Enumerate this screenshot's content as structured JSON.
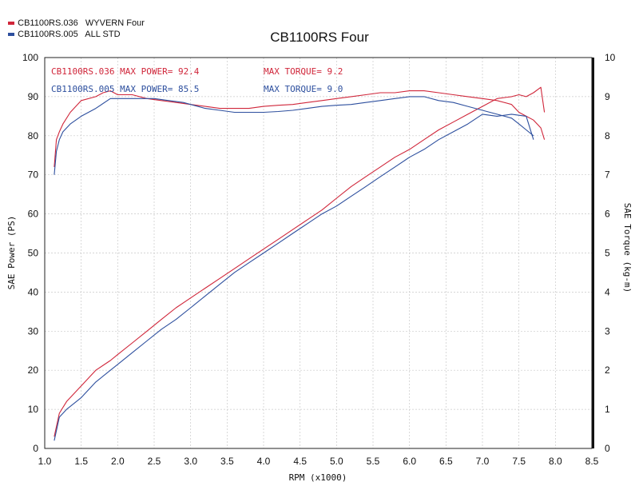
{
  "legend": [
    {
      "label": "CB1100RS.036   WYVERN Four",
      "color": "#d0263a"
    },
    {
      "label": "CB1100RS.005   ALL STD",
      "color": "#2d4f9e"
    }
  ],
  "annotations": {
    "red_power": "CB1100RS.036  MAX POWER= 92.4",
    "red_torque": "MAX TORQUE= 9.2",
    "blue_power": "CB1100RS.005  MAX POWER= 85.5",
    "blue_torque": "MAX TORQUE= 9.0"
  },
  "chart_data": {
    "type": "line",
    "title": "CB1100RS Four",
    "xlabel": "RPM (x1000)",
    "ylabel": "SAE Power (PS)",
    "y2label": "SAE Torque (kg-m)",
    "xlim": [
      1.0,
      8.5
    ],
    "ylim": [
      0,
      100
    ],
    "y2lim": [
      0,
      10
    ],
    "xticks": [
      "1.0",
      "1.5",
      "2.0",
      "2.5",
      "3.0",
      "3.5",
      "4.0",
      "4.5",
      "5.0",
      "5.5",
      "6.0",
      "6.5",
      "7.0",
      "7.5",
      "8.0",
      "8.5"
    ],
    "yticks": [
      "0",
      "10",
      "20",
      "30",
      "40",
      "50",
      "60",
      "70",
      "80",
      "90",
      "100"
    ],
    "y2ticks": [
      "0",
      "1",
      "2",
      "3",
      "4",
      "5",
      "6",
      "7",
      "8",
      "9",
      "10"
    ],
    "grid": true,
    "series": [
      {
        "name": "CB1100RS.036 WYVERN Four",
        "measure": "torque",
        "axis": "right",
        "color": "#d0263a",
        "x": [
          1.13,
          1.16,
          1.2,
          1.25,
          1.35,
          1.5,
          1.7,
          1.8,
          1.9,
          2.0,
          2.2,
          2.4,
          2.6,
          2.8,
          3.0,
          3.2,
          3.4,
          3.6,
          3.8,
          4.0,
          4.2,
          4.4,
          4.6,
          4.8,
          5.0,
          5.2,
          5.4,
          5.6,
          5.8,
          6.0,
          6.2,
          6.4,
          6.6,
          6.8,
          7.0,
          7.2,
          7.4,
          7.5,
          7.6,
          7.7,
          7.75,
          7.8,
          7.85
        ],
        "y": [
          7.2,
          7.9,
          8.1,
          8.3,
          8.6,
          8.9,
          9.0,
          9.1,
          9.15,
          9.05,
          9.05,
          8.95,
          8.9,
          8.85,
          8.8,
          8.75,
          8.7,
          8.7,
          8.7,
          8.75,
          8.78,
          8.8,
          8.85,
          8.9,
          8.95,
          9.0,
          9.05,
          9.1,
          9.1,
          9.15,
          9.15,
          9.1,
          9.05,
          9.0,
          8.95,
          8.9,
          8.8,
          8.6,
          8.5,
          8.4,
          8.3,
          8.2,
          7.9
        ]
      },
      {
        "name": "CB1100RS.036 WYVERN Four",
        "measure": "power",
        "axis": "left",
        "color": "#d0263a",
        "x": [
          1.13,
          1.2,
          1.3,
          1.5,
          1.7,
          1.9,
          2.0,
          2.2,
          2.4,
          2.6,
          2.8,
          3.0,
          3.2,
          3.4,
          3.6,
          3.8,
          4.0,
          4.2,
          4.4,
          4.6,
          4.8,
          5.0,
          5.2,
          5.4,
          5.6,
          5.8,
          6.0,
          6.2,
          6.4,
          6.6,
          6.8,
          7.0,
          7.2,
          7.4,
          7.5,
          7.6,
          7.7,
          7.8,
          7.85
        ],
        "y": [
          3,
          9,
          12,
          16,
          20,
          22.5,
          24,
          27,
          30,
          33,
          36,
          38.5,
          41,
          43.5,
          46,
          48.5,
          51,
          53.5,
          56,
          58.5,
          61,
          64,
          67,
          69.5,
          72,
          74.5,
          76.5,
          79,
          81.5,
          83.5,
          85.5,
          87.5,
          89.5,
          90,
          90.5,
          90,
          91,
          92.4,
          86
        ]
      },
      {
        "name": "CB1100RS.005 ALL STD",
        "measure": "torque",
        "axis": "right",
        "color": "#2d4f9e",
        "x": [
          1.13,
          1.16,
          1.2,
          1.25,
          1.35,
          1.5,
          1.7,
          1.9,
          2.1,
          2.3,
          2.5,
          2.7,
          2.9,
          3.0,
          3.2,
          3.4,
          3.6,
          3.8,
          4.0,
          4.2,
          4.4,
          4.6,
          4.8,
          5.0,
          5.2,
          5.4,
          5.6,
          5.8,
          6.0,
          6.2,
          6.4,
          6.6,
          6.8,
          7.0,
          7.2,
          7.4,
          7.5,
          7.6,
          7.7
        ],
        "y": [
          7.0,
          7.6,
          7.9,
          8.1,
          8.3,
          8.5,
          8.7,
          8.95,
          8.95,
          8.95,
          8.95,
          8.9,
          8.85,
          8.8,
          8.7,
          8.65,
          8.6,
          8.6,
          8.6,
          8.62,
          8.65,
          8.7,
          8.75,
          8.78,
          8.8,
          8.85,
          8.9,
          8.95,
          9.0,
          9.0,
          8.9,
          8.85,
          8.75,
          8.65,
          8.55,
          8.45,
          8.3,
          8.15,
          8.0
        ]
      },
      {
        "name": "CB1100RS.005 ALL STD",
        "measure": "power",
        "axis": "left",
        "color": "#2d4f9e",
        "x": [
          1.13,
          1.2,
          1.3,
          1.5,
          1.7,
          1.9,
          2.0,
          2.2,
          2.4,
          2.6,
          2.8,
          3.0,
          3.2,
          3.4,
          3.6,
          3.8,
          4.0,
          4.2,
          4.4,
          4.6,
          4.8,
          5.0,
          5.2,
          5.4,
          5.6,
          5.8,
          6.0,
          6.2,
          6.4,
          6.6,
          6.8,
          7.0,
          7.2,
          7.4,
          7.6,
          7.7
        ],
        "y": [
          2,
          8,
          10,
          13,
          17,
          20,
          21.5,
          24.5,
          27.5,
          30.5,
          33,
          36,
          39,
          42,
          45,
          47.5,
          50,
          52.5,
          55,
          57.5,
          60,
          62,
          64.5,
          67,
          69.5,
          72,
          74.5,
          76.5,
          79,
          81,
          83,
          85.5,
          85,
          85.5,
          85,
          79
        ]
      }
    ]
  }
}
